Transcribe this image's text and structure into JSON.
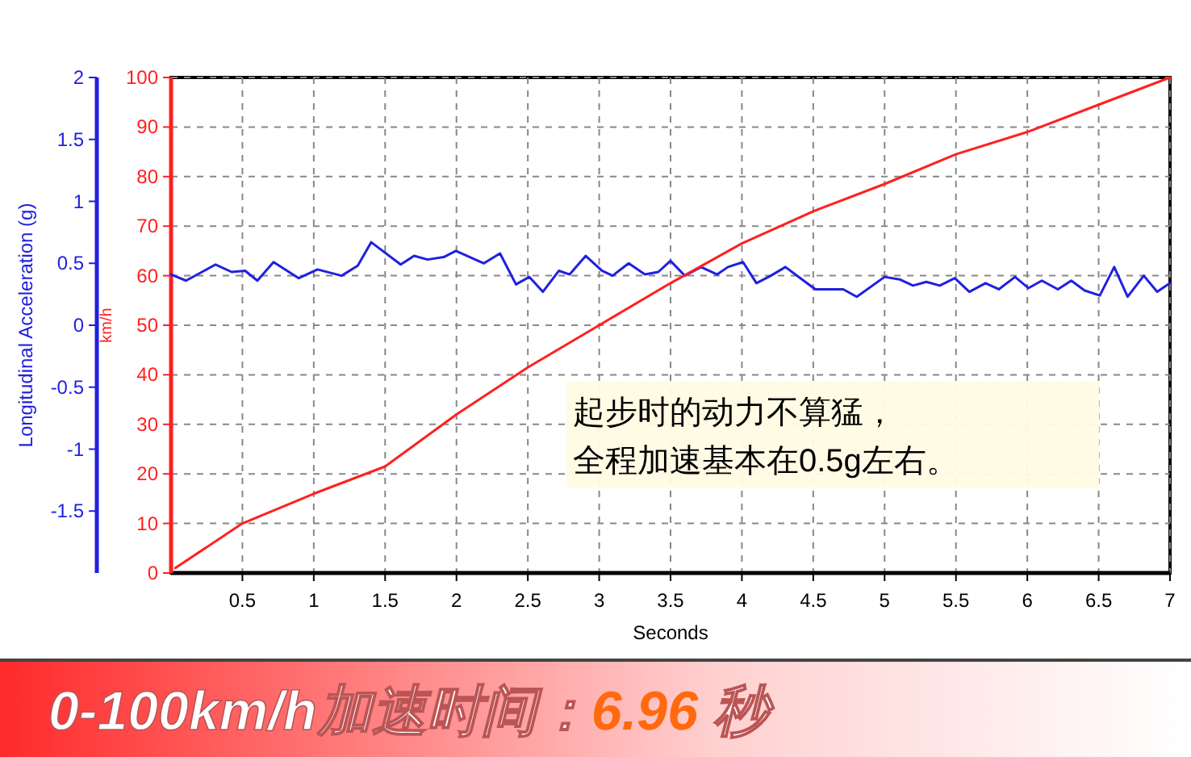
{
  "chart_data": {
    "type": "line",
    "xlabel": "Seconds",
    "ylabel": "km/h",
    "y2label": "Longitudinal Acceleration (g)",
    "xlim": [
      0,
      7
    ],
    "xticks": [
      0.5,
      1,
      1.5,
      2,
      2.5,
      3,
      3.5,
      4,
      4.5,
      5,
      5.5,
      6,
      6.5,
      7
    ],
    "ylim": [
      0,
      100
    ],
    "yticks": [
      0,
      10,
      20,
      30,
      40,
      50,
      60,
      70,
      80,
      90,
      100
    ],
    "y2lim": [
      -2,
      2
    ],
    "y2ticks": [
      -1.5,
      -1,
      -0.5,
      0,
      0.5,
      1,
      1.5,
      2
    ],
    "grid": true,
    "series": [
      {
        "color": "#ff2020",
        "x": [
          0.03,
          0.5,
          1,
          1.5,
          2,
          2.5,
          3,
          3.5,
          4,
          4.5,
          5,
          5.5,
          6,
          6.5,
          7
        ],
        "values": [
          1,
          10,
          16,
          21.5,
          32,
          41.5,
          50,
          58.5,
          66.5,
          73,
          78.5,
          84.5,
          89,
          94.5,
          100
        ]
      },
      {
        "color": "#2020e0",
        "axis": "y2",
        "x": [
          0,
          0.105,
          0.312,
          0.425,
          0.519,
          0.605,
          0.718,
          0.895,
          1.026,
          1.195,
          1.308,
          1.402,
          1.609,
          1.703,
          1.797,
          1.91,
          1.996,
          2.192,
          2.305,
          2.417,
          2.511,
          2.605,
          2.718,
          2.793,
          2.906,
          3.019,
          3.094,
          3.207,
          3.32,
          3.414,
          3.5,
          3.6,
          3.714,
          3.827,
          3.902,
          4.008,
          4.102,
          4.203,
          4.305,
          4.41,
          4.515,
          4.71,
          4.805,
          5.0,
          5.105,
          5.199,
          5.293,
          5.387,
          5.492,
          5.594,
          5.707,
          5.8,
          5.914,
          6.008,
          6.102,
          6.214,
          6.308,
          6.402,
          6.508,
          6.609,
          6.703,
          6.816,
          6.91,
          7.0
        ],
        "values": [
          0.41,
          0.36,
          0.49,
          0.43,
          0.44,
          0.36,
          0.51,
          0.38,
          0.45,
          0.4,
          0.48,
          0.67,
          0.49,
          0.56,
          0.53,
          0.55,
          0.6,
          0.5,
          0.58,
          0.33,
          0.39,
          0.27,
          0.44,
          0.41,
          0.56,
          0.44,
          0.4,
          0.5,
          0.41,
          0.43,
          0.52,
          0.4,
          0.47,
          0.41,
          0.47,
          0.51,
          0.34,
          0.4,
          0.47,
          0.38,
          0.29,
          0.29,
          0.23,
          0.39,
          0.37,
          0.32,
          0.35,
          0.32,
          0.38,
          0.27,
          0.34,
          0.29,
          0.39,
          0.3,
          0.36,
          0.29,
          0.36,
          0.28,
          0.24,
          0.47,
          0.23,
          0.4,
          0.27,
          0.34
        ]
      }
    ],
    "annotations": [
      "起步时的动力不算猛，",
      "全程加速基本在0.5g左右。",
      "0-100km/h加速时间：6.96 秒"
    ]
  }
}
